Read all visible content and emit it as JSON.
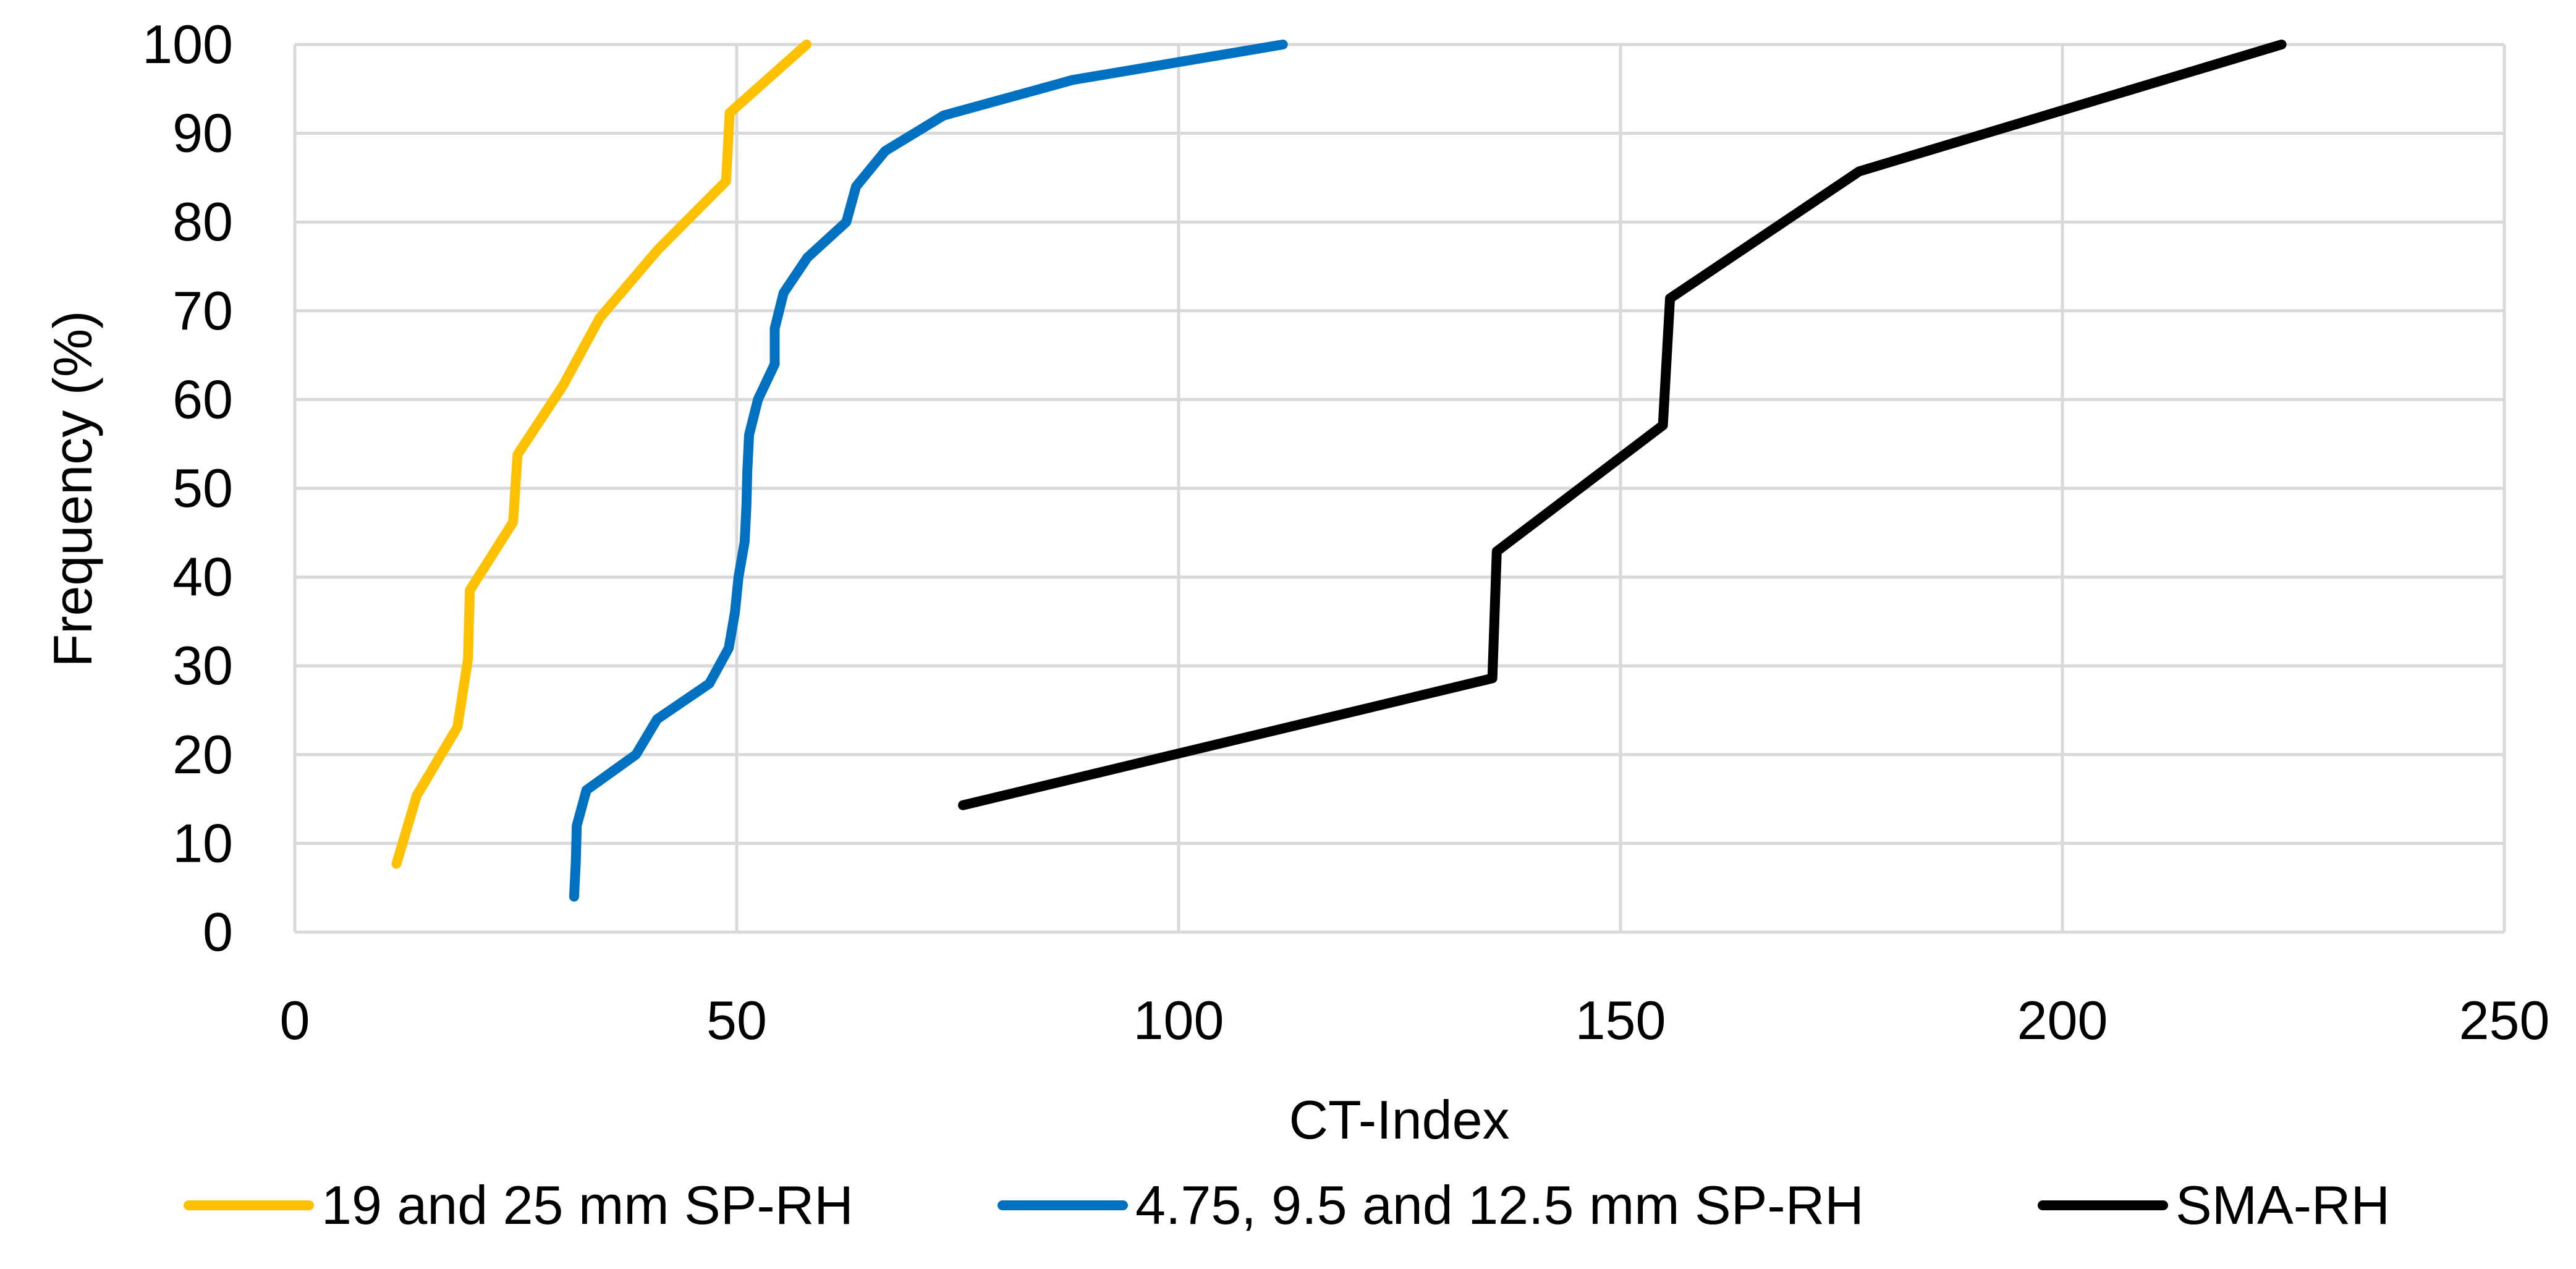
{
  "chart_data": {
    "type": "line",
    "xlabel": "CT-Index",
    "ylabel": "Frequency (%)",
    "xlim": [
      0,
      250
    ],
    "ylim": [
      0,
      100
    ],
    "xticks": [
      "0",
      "50",
      "100",
      "150",
      "200",
      "250"
    ],
    "yticks": [
      "0",
      "10",
      "20",
      "30",
      "40",
      "50",
      "60",
      "70",
      "80",
      "90",
      "100"
    ],
    "grid": "on",
    "legend_position": "bottom",
    "series": [
      {
        "name": "19 and 25 mm SP-RH",
        "color": "#FFC000",
        "points": [
          [
            11.5,
            7.7
          ],
          [
            13.8,
            15.4
          ],
          [
            18.4,
            23.1
          ],
          [
            19.6,
            30.8
          ],
          [
            19.8,
            38.5
          ],
          [
            24.7,
            46.2
          ],
          [
            25.2,
            53.8
          ],
          [
            30.3,
            61.5
          ],
          [
            34.5,
            69.2
          ],
          [
            41.1,
            76.9
          ],
          [
            48.8,
            84.6
          ],
          [
            49.2,
            92.3
          ],
          [
            57.9,
            100.0
          ]
        ]
      },
      {
        "name": "4.75, 9.5 and 12.5 mm SP-RH",
        "color": "#0070C0",
        "points": [
          [
            31.6,
            4.0
          ],
          [
            31.8,
            8.0
          ],
          [
            31.9,
            12.0
          ],
          [
            33.0,
            16.0
          ],
          [
            38.6,
            20.0
          ],
          [
            41.0,
            24.0
          ],
          [
            46.9,
            28.0
          ],
          [
            49.1,
            32.0
          ],
          [
            49.8,
            36.0
          ],
          [
            50.2,
            40.0
          ],
          [
            50.9,
            44.0
          ],
          [
            51.1,
            48.0
          ],
          [
            51.2,
            52.0
          ],
          [
            51.4,
            56.0
          ],
          [
            52.4,
            60.0
          ],
          [
            54.3,
            64.0
          ],
          [
            54.3,
            68.0
          ],
          [
            55.3,
            72.0
          ],
          [
            58.0,
            76.0
          ],
          [
            62.4,
            80.0
          ],
          [
            63.5,
            84.0
          ],
          [
            66.8,
            88.0
          ],
          [
            73.4,
            92.0
          ],
          [
            88.0,
            96.0
          ],
          [
            111.8,
            100.0
          ]
        ]
      },
      {
        "name": "SMA-RH",
        "color": "#000000",
        "points": [
          [
            75.6,
            14.3
          ],
          [
            135.5,
            28.6
          ],
          [
            136.0,
            42.9
          ],
          [
            154.8,
            57.1
          ],
          [
            155.6,
            71.4
          ],
          [
            177.0,
            85.7
          ],
          [
            224.8,
            100.0
          ]
        ]
      }
    ]
  }
}
